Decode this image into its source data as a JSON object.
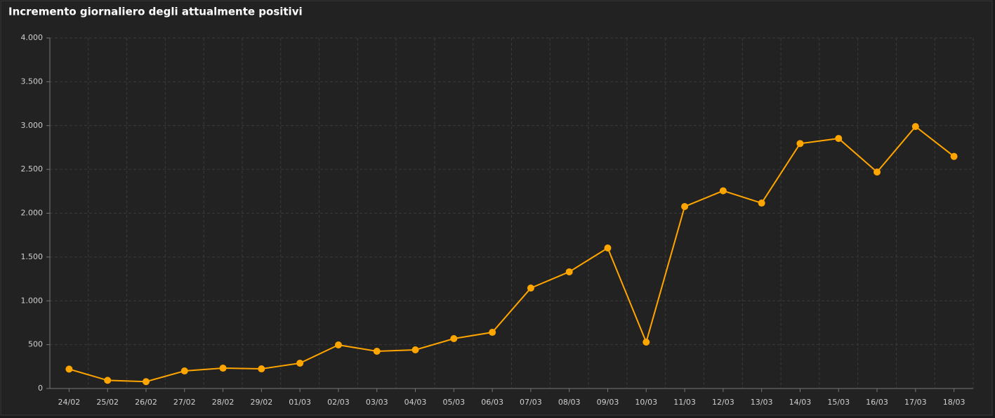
{
  "chart_data": {
    "type": "line",
    "title": "Incremento giornaliero degli attualmente positivi",
    "categories": [
      "24/02",
      "25/02",
      "26/02",
      "27/02",
      "28/02",
      "29/02",
      "01/03",
      "02/03",
      "03/03",
      "04/03",
      "05/03",
      "06/03",
      "07/03",
      "08/03",
      "09/03",
      "10/03",
      "11/03",
      "12/03",
      "13/03",
      "14/03",
      "15/03",
      "16/03",
      "17/03",
      "18/03"
    ],
    "series": [
      {
        "name": "Incremento giornaliero",
        "color": "#ffa500",
        "values": [
          221,
          93,
          78,
          200,
          232,
          224,
          289,
          497,
          425,
          441,
          569,
          641,
          1146,
          1331,
          1603,
          529,
          2076,
          2256,
          2116,
          2795,
          2853,
          2470,
          2989,
          2648
        ]
      }
    ],
    "ylim": [
      0,
      4000
    ],
    "yticks": [
      0,
      500,
      {
        "value": 1000,
        "label": "1.000"
      },
      {
        "value": 1500,
        "label": "1.500"
      },
      {
        "value": 2000,
        "label": "2.000"
      },
      {
        "value": 2500,
        "label": "2.500"
      },
      {
        "value": 3000,
        "label": "3.000"
      },
      {
        "value": 3500,
        "label": "3.500"
      },
      {
        "value": 4000,
        "label": "4.000"
      }
    ],
    "grid": true
  }
}
